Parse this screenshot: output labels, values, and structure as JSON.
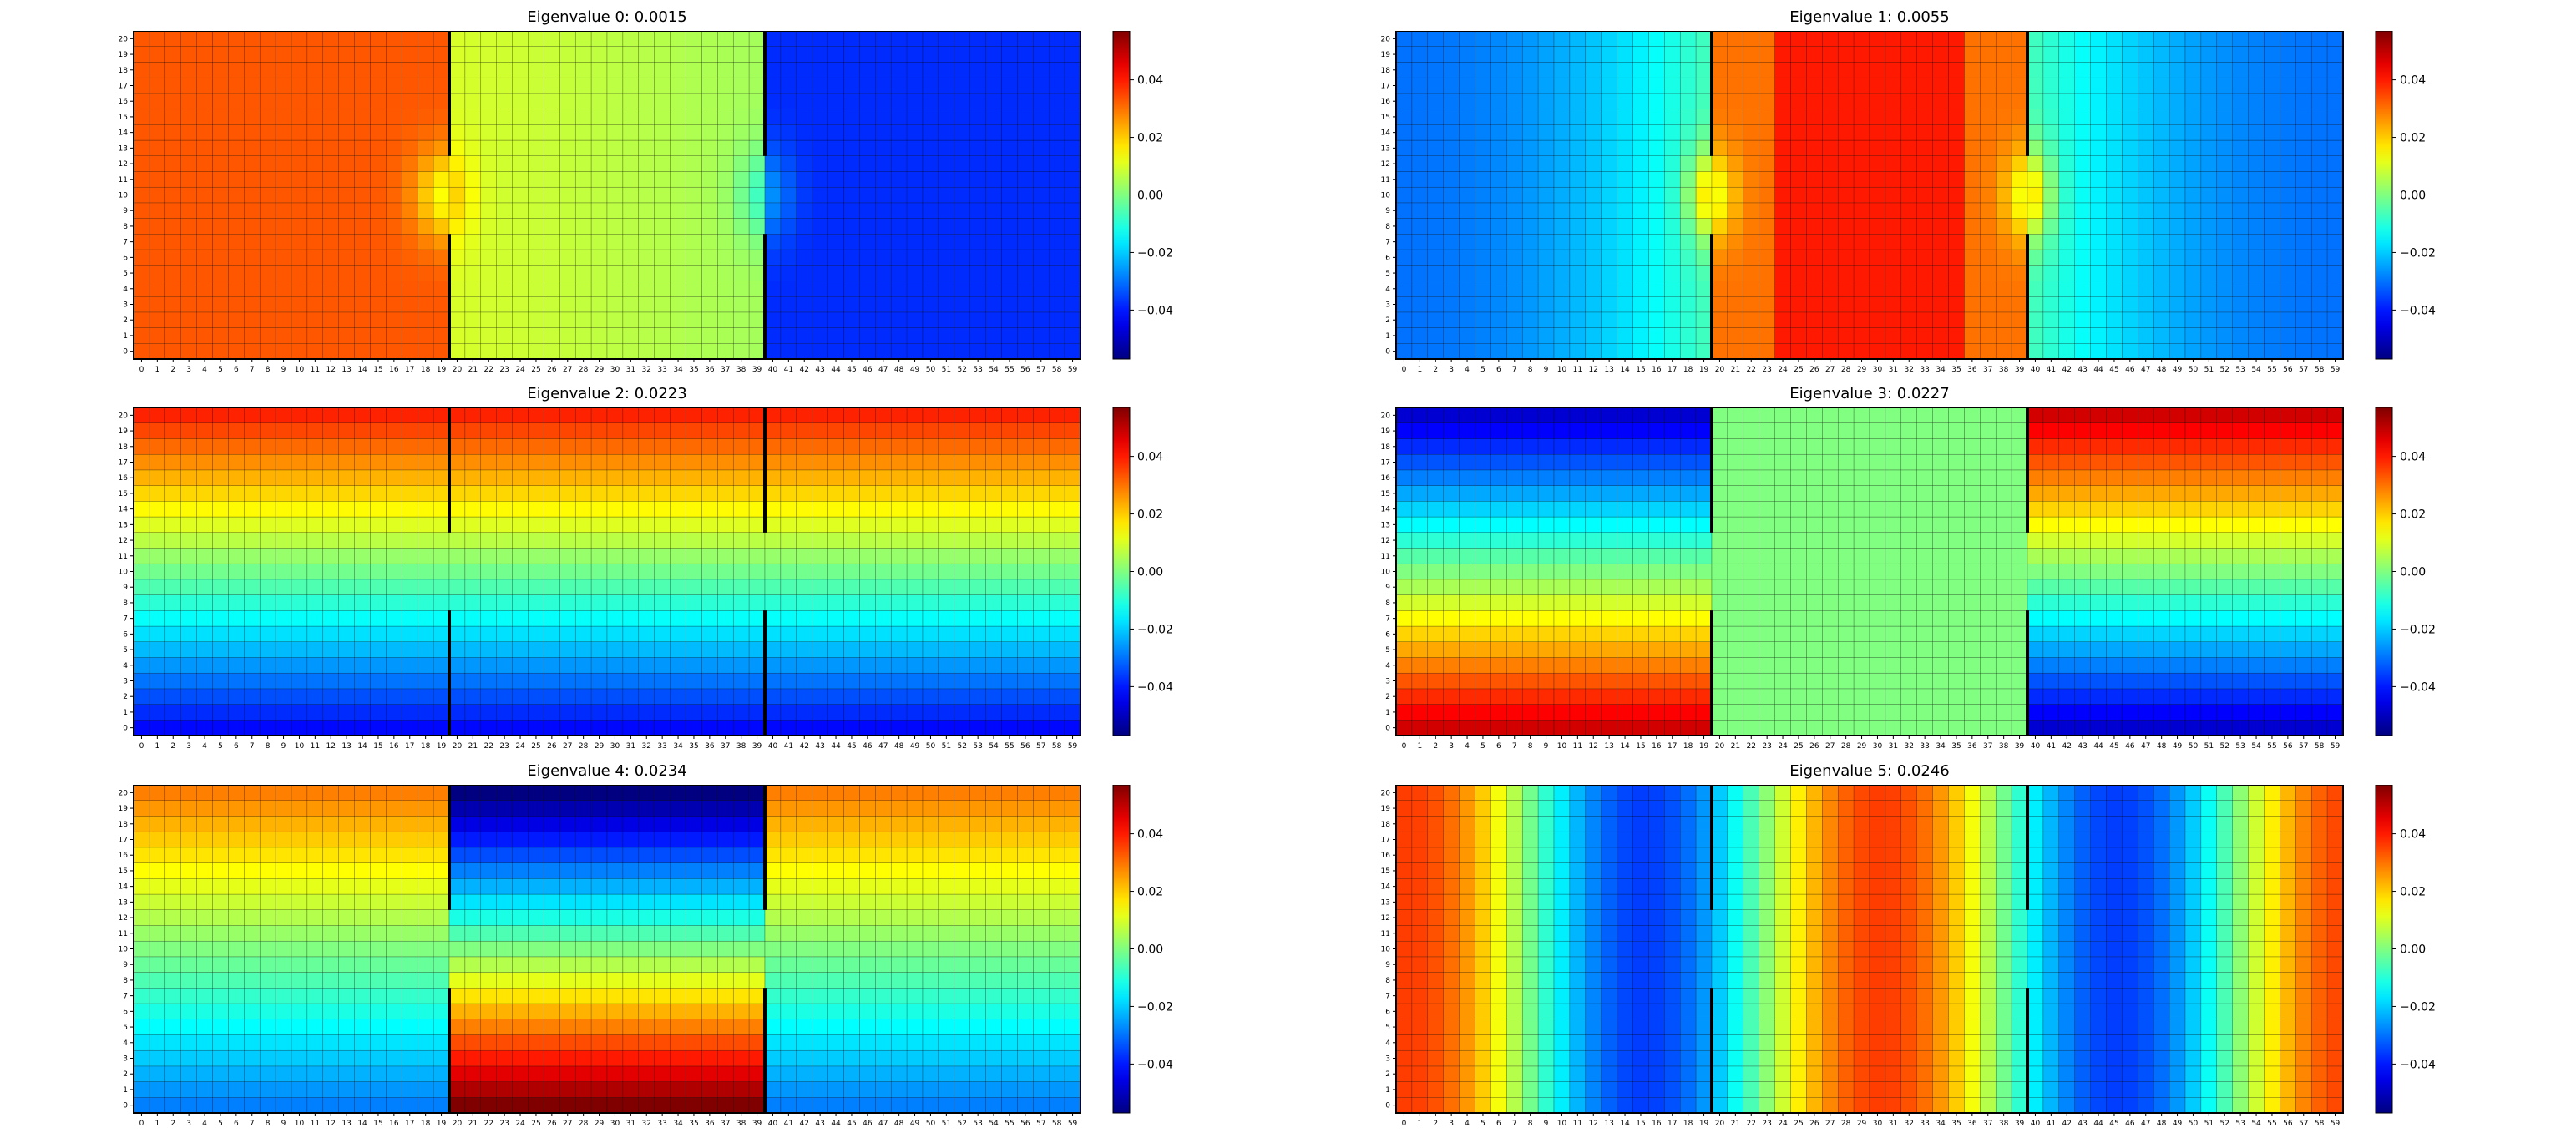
{
  "chart_data": [
    {
      "type": "heatmap",
      "title": "Eigenvalue 0: 0.0015",
      "mode": 0,
      "vmin": -0.057,
      "vmax": 0.057,
      "x_ticks": [
        0,
        1,
        2,
        3,
        4,
        5,
        6,
        7,
        8,
        9,
        10,
        11,
        12,
        13,
        14,
        15,
        16,
        17,
        18,
        19,
        20,
        21,
        22,
        23,
        24,
        25,
        26,
        27,
        28,
        29,
        30,
        31,
        32,
        33,
        34,
        35,
        36,
        37,
        38,
        39,
        40,
        41,
        42,
        43,
        44,
        45,
        46,
        47,
        48,
        49,
        50,
        51,
        52,
        53,
        54,
        55,
        56,
        57,
        58,
        59
      ],
      "y_ticks": [
        0,
        1,
        2,
        3,
        4,
        5,
        6,
        7,
        8,
        9,
        10,
        11,
        12,
        13,
        14,
        15,
        16,
        17,
        18,
        19,
        20
      ],
      "colorbar_ticks": [
        -0.04,
        -0.02,
        0.0,
        0.02,
        0.04
      ],
      "colorbar_labels": [
        "−0.04",
        "−0.02",
        "0.00",
        "0.02",
        "0.04"
      ],
      "walls": [
        20,
        40
      ],
      "wall_gap": [
        8,
        13
      ]
    },
    {
      "type": "heatmap",
      "title": "Eigenvalue 1: 0.0055",
      "mode": 1,
      "vmin": -0.057,
      "vmax": 0.057,
      "x_ticks": [
        0,
        1,
        2,
        3,
        4,
        5,
        6,
        7,
        8,
        9,
        10,
        11,
        12,
        13,
        14,
        15,
        16,
        17,
        18,
        19,
        20,
        21,
        22,
        23,
        24,
        25,
        26,
        27,
        28,
        29,
        30,
        31,
        32,
        33,
        34,
        35,
        36,
        37,
        38,
        39,
        40,
        41,
        42,
        43,
        44,
        45,
        46,
        47,
        48,
        49,
        50,
        51,
        52,
        53,
        54,
        55,
        56,
        57,
        58,
        59
      ],
      "y_ticks": [
        0,
        1,
        2,
        3,
        4,
        5,
        6,
        7,
        8,
        9,
        10,
        11,
        12,
        13,
        14,
        15,
        16,
        17,
        18,
        19,
        20
      ],
      "colorbar_ticks": [
        -0.04,
        -0.02,
        0.0,
        0.02,
        0.04
      ],
      "colorbar_labels": [
        "−0.04",
        "−0.02",
        "0.00",
        "0.02",
        "0.04"
      ],
      "walls": [
        20,
        40
      ],
      "wall_gap": [
        8,
        13
      ]
    },
    {
      "type": "heatmap",
      "title": "Eigenvalue 2: 0.0223",
      "mode": 2,
      "vmin": -0.057,
      "vmax": 0.057,
      "x_ticks": [
        0,
        1,
        2,
        3,
        4,
        5,
        6,
        7,
        8,
        9,
        10,
        11,
        12,
        13,
        14,
        15,
        16,
        17,
        18,
        19,
        20,
        21,
        22,
        23,
        24,
        25,
        26,
        27,
        28,
        29,
        30,
        31,
        32,
        33,
        34,
        35,
        36,
        37,
        38,
        39,
        40,
        41,
        42,
        43,
        44,
        45,
        46,
        47,
        48,
        49,
        50,
        51,
        52,
        53,
        54,
        55,
        56,
        57,
        58,
        59
      ],
      "y_ticks": [
        0,
        1,
        2,
        3,
        4,
        5,
        6,
        7,
        8,
        9,
        10,
        11,
        12,
        13,
        14,
        15,
        16,
        17,
        18,
        19,
        20
      ],
      "colorbar_ticks": [
        -0.04,
        -0.02,
        0.0,
        0.02,
        0.04
      ],
      "colorbar_labels": [
        "−0.04",
        "−0.02",
        "0.00",
        "0.02",
        "0.04"
      ],
      "walls": [
        20,
        40
      ],
      "wall_gap": [
        8,
        13
      ]
    },
    {
      "type": "heatmap",
      "title": "Eigenvalue 3: 0.0227",
      "mode": 3,
      "vmin": -0.057,
      "vmax": 0.057,
      "x_ticks": [
        0,
        1,
        2,
        3,
        4,
        5,
        6,
        7,
        8,
        9,
        10,
        11,
        12,
        13,
        14,
        15,
        16,
        17,
        18,
        19,
        20,
        21,
        22,
        23,
        24,
        25,
        26,
        27,
        28,
        29,
        30,
        31,
        32,
        33,
        34,
        35,
        36,
        37,
        38,
        39,
        40,
        41,
        42,
        43,
        44,
        45,
        46,
        47,
        48,
        49,
        50,
        51,
        52,
        53,
        54,
        55,
        56,
        57,
        58,
        59
      ],
      "y_ticks": [
        0,
        1,
        2,
        3,
        4,
        5,
        6,
        7,
        8,
        9,
        10,
        11,
        12,
        13,
        14,
        15,
        16,
        17,
        18,
        19,
        20
      ],
      "colorbar_ticks": [
        -0.04,
        -0.02,
        0.0,
        0.02,
        0.04
      ],
      "colorbar_labels": [
        "−0.04",
        "−0.02",
        "0.00",
        "0.02",
        "0.04"
      ],
      "walls": [
        20,
        40
      ],
      "wall_gap": [
        8,
        13
      ]
    },
    {
      "type": "heatmap",
      "title": "Eigenvalue 4: 0.0234",
      "mode": 4,
      "vmin": -0.057,
      "vmax": 0.057,
      "x_ticks": [
        0,
        1,
        2,
        3,
        4,
        5,
        6,
        7,
        8,
        9,
        10,
        11,
        12,
        13,
        14,
        15,
        16,
        17,
        18,
        19,
        20,
        21,
        22,
        23,
        24,
        25,
        26,
        27,
        28,
        29,
        30,
        31,
        32,
        33,
        34,
        35,
        36,
        37,
        38,
        39,
        40,
        41,
        42,
        43,
        44,
        45,
        46,
        47,
        48,
        49,
        50,
        51,
        52,
        53,
        54,
        55,
        56,
        57,
        58,
        59
      ],
      "y_ticks": [
        0,
        1,
        2,
        3,
        4,
        5,
        6,
        7,
        8,
        9,
        10,
        11,
        12,
        13,
        14,
        15,
        16,
        17,
        18,
        19,
        20
      ],
      "colorbar_ticks": [
        -0.04,
        -0.02,
        0.0,
        0.02,
        0.04
      ],
      "colorbar_labels": [
        "−0.04",
        "−0.02",
        "0.00",
        "0.02",
        "0.04"
      ],
      "walls": [
        20,
        40
      ],
      "wall_gap": [
        8,
        13
      ]
    },
    {
      "type": "heatmap",
      "title": "Eigenvalue 5: 0.0246",
      "mode": 5,
      "vmin": -0.057,
      "vmax": 0.057,
      "x_ticks": [
        0,
        1,
        2,
        3,
        4,
        5,
        6,
        7,
        8,
        9,
        10,
        11,
        12,
        13,
        14,
        15,
        16,
        17,
        18,
        19,
        20,
        21,
        22,
        23,
        24,
        25,
        26,
        27,
        28,
        29,
        30,
        31,
        32,
        33,
        34,
        35,
        36,
        37,
        38,
        39,
        40,
        41,
        42,
        43,
        44,
        45,
        46,
        47,
        48,
        49,
        50,
        51,
        52,
        53,
        54,
        55,
        56,
        57,
        58,
        59
      ],
      "y_ticks": [
        0,
        1,
        2,
        3,
        4,
        5,
        6,
        7,
        8,
        9,
        10,
        11,
        12,
        13,
        14,
        15,
        16,
        17,
        18,
        19,
        20
      ],
      "colorbar_ticks": [
        -0.04,
        -0.02,
        0.0,
        0.02,
        0.04
      ],
      "colorbar_labels": [
        "−0.04",
        "−0.02",
        "0.00",
        "0.02",
        "0.04"
      ],
      "walls": [
        20,
        40
      ],
      "wall_gap": [
        8,
        13
      ]
    }
  ]
}
